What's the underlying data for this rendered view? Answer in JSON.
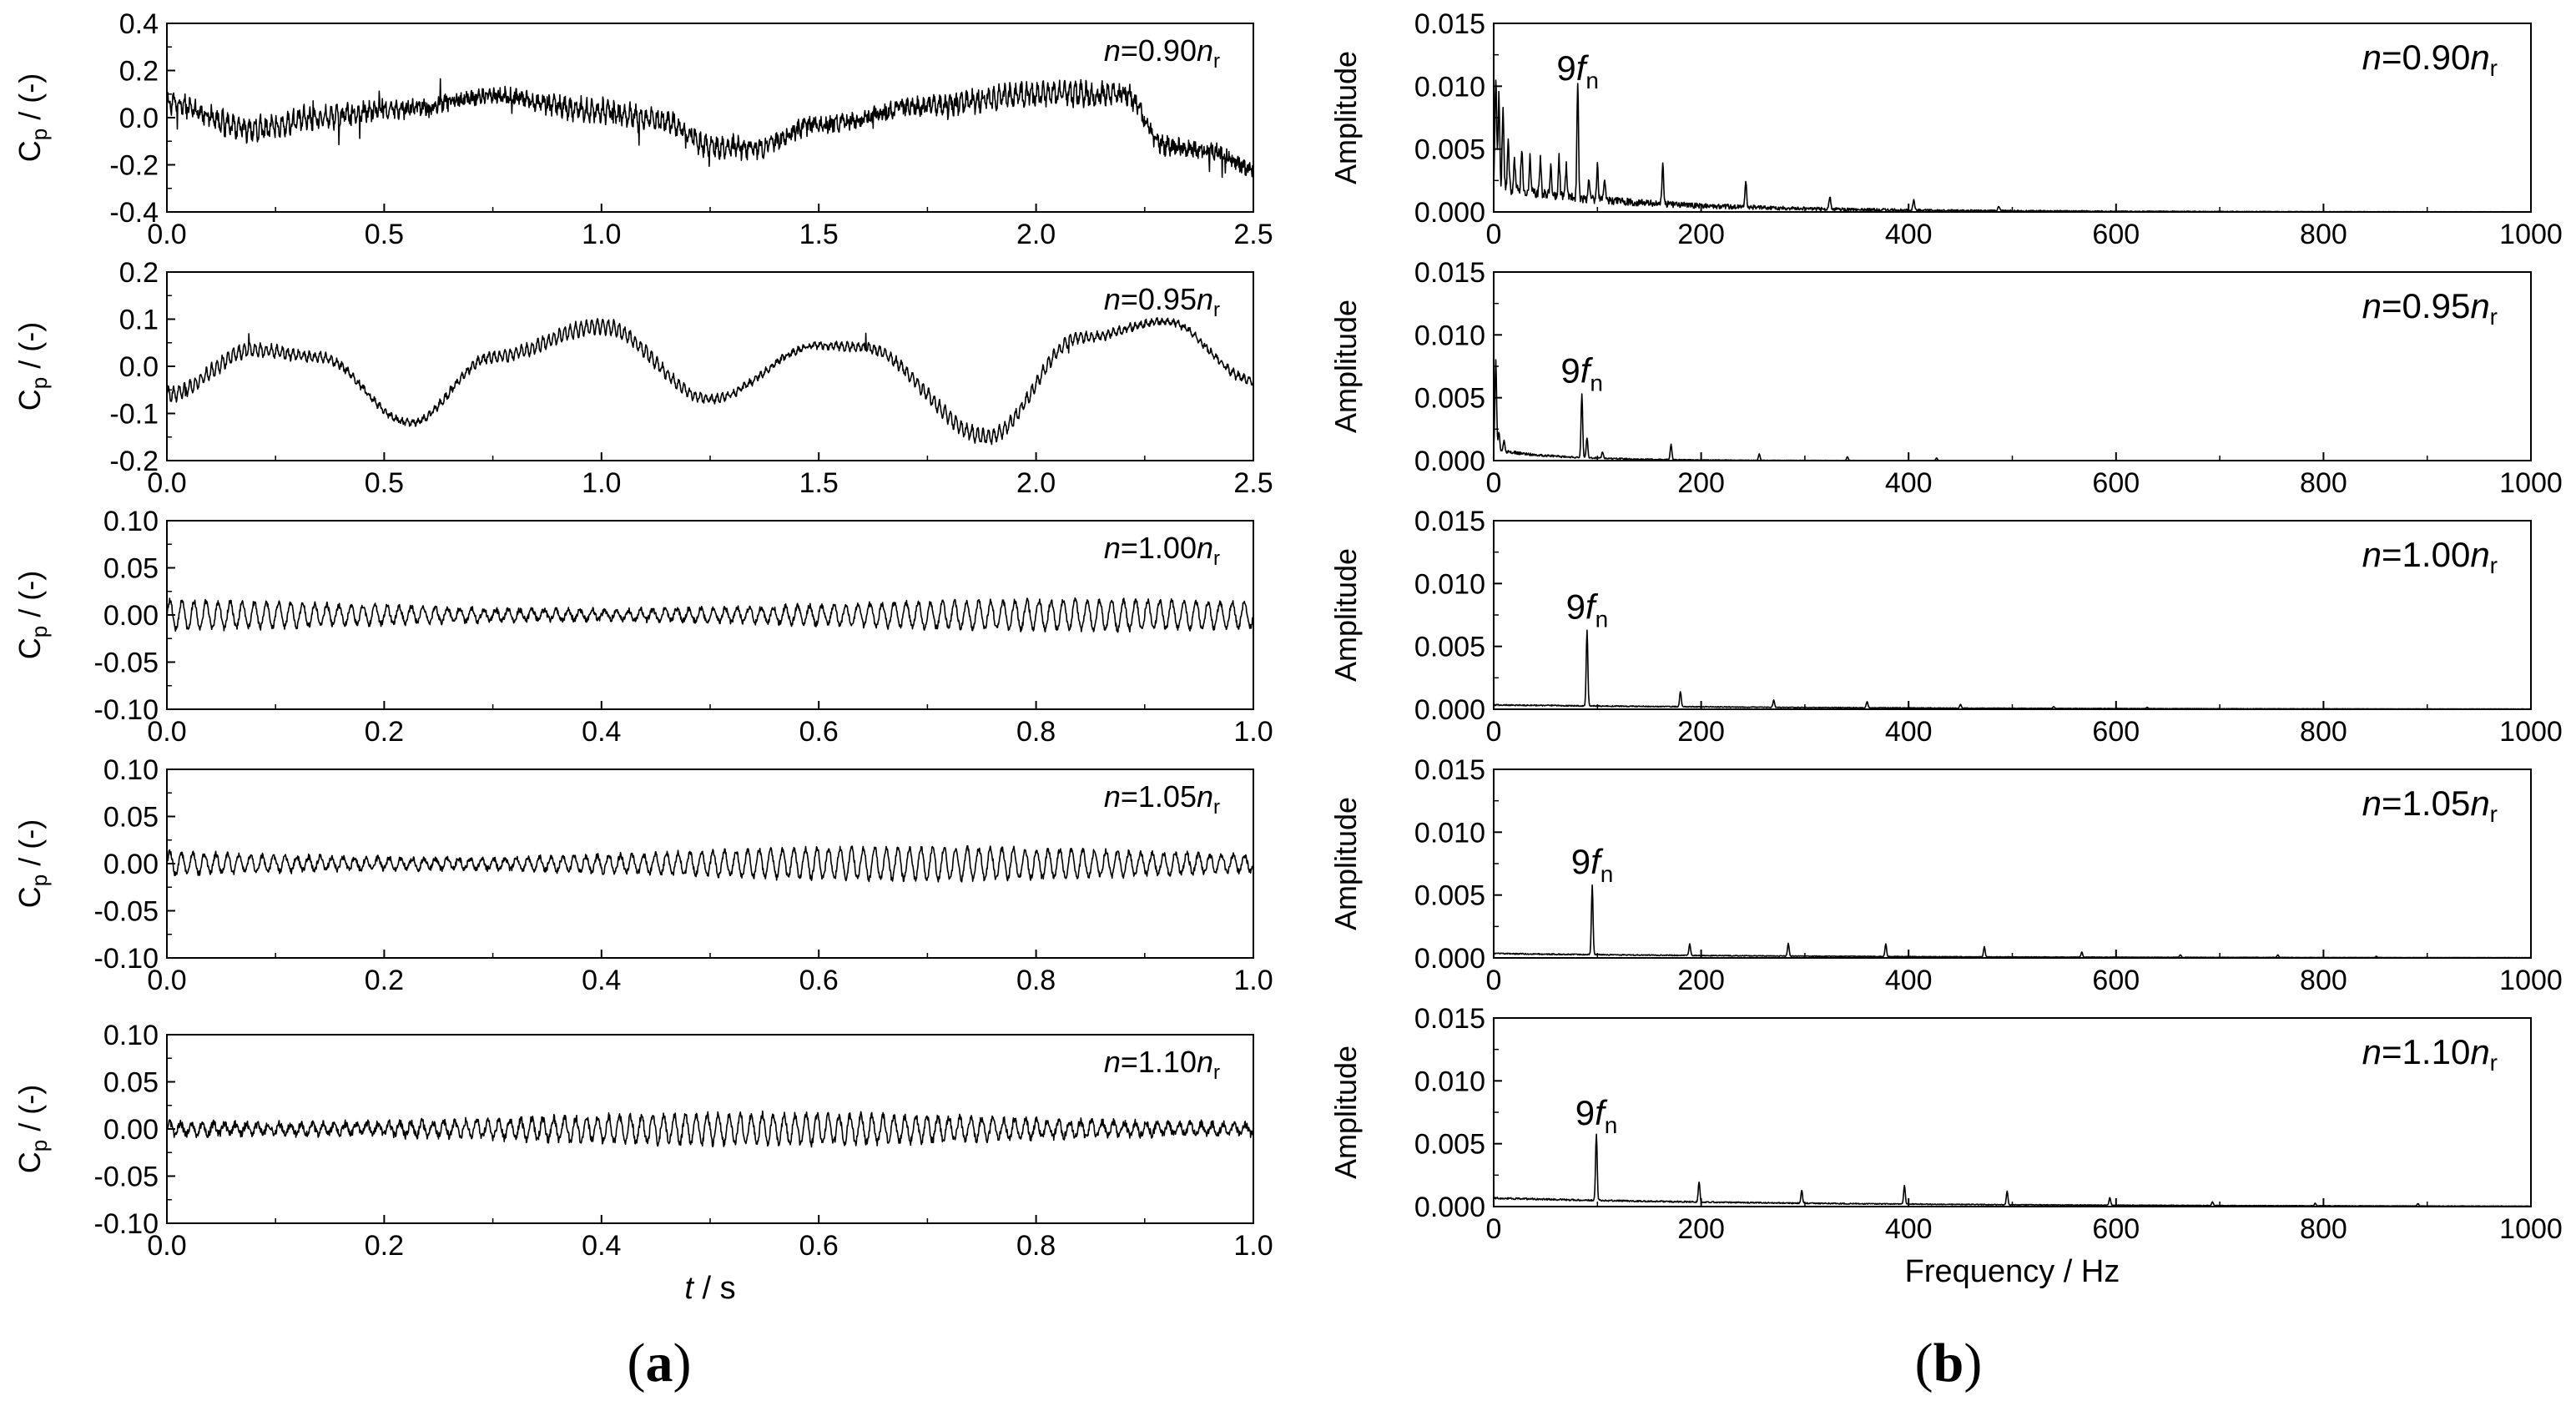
{
  "colors": {
    "line": "#000000",
    "axis": "#000000",
    "background": "#ffffff"
  },
  "panel_labels": {
    "a": {
      "open": "(",
      "letter": "a",
      "close": ")"
    },
    "b": {
      "open": "(",
      "letter": "b",
      "close": ")"
    }
  },
  "chart_data": [
    {
      "type": "line",
      "panel": "a",
      "row": 0,
      "title": "n=0.90nr",
      "annotation": {
        "italic": "n",
        "eq": "=0.90",
        "italic2": "n",
        "sub": "r"
      },
      "ylabel": {
        "main": "C",
        "sub": "p",
        "rest": " / (-)"
      },
      "xlim": [
        0,
        2.5
      ],
      "ylim": [
        -0.4,
        0.4
      ],
      "xticks": [
        "0.0",
        "0.5",
        "1.0",
        "1.5",
        "2.0",
        "2.5"
      ],
      "yticks": [
        "0.4",
        "0.2",
        "0.0",
        "-0.2",
        "-0.4"
      ],
      "xtitle": null,
      "trend": {
        "x": [
          0,
          0.2,
          0.35,
          0.5,
          0.75,
          1.0,
          1.15,
          1.25,
          1.35,
          1.5,
          1.75,
          2.0,
          2.2,
          2.3,
          2.4,
          2.5
        ],
        "y": [
          0.06,
          -0.05,
          0.0,
          0.03,
          0.09,
          0.03,
          -0.02,
          -0.12,
          -0.13,
          -0.03,
          0.05,
          0.1,
          0.1,
          -0.12,
          -0.14,
          -0.22
        ]
      },
      "noise": {
        "fast_amp": 0.03,
        "freq": 80,
        "random_amp": 0.03,
        "spikes": 25,
        "spike_amp": 0.1
      }
    },
    {
      "type": "line",
      "panel": "a",
      "row": 1,
      "title": "n=0.95nr",
      "annotation": {
        "italic": "n",
        "eq": "=0.95",
        "italic2": "n",
        "sub": "r"
      },
      "ylabel": {
        "main": "C",
        "sub": "p",
        "rest": " / (-)"
      },
      "xlim": [
        0,
        2.5
      ],
      "ylim": [
        -0.2,
        0.2
      ],
      "xticks": [
        "0.0",
        "0.5",
        "1.0",
        "1.5",
        "2.0",
        "2.5"
      ],
      "yticks": [
        "0.2",
        "0.1",
        "0.0",
        "-0.1",
        "-0.2"
      ],
      "xtitle": null,
      "trend": {
        "x": [
          0,
          0.2,
          0.35,
          0.56,
          0.75,
          1.0,
          1.25,
          1.5,
          1.6,
          1.89,
          2.1,
          2.3,
          2.5
        ],
        "y": [
          -0.06,
          0.035,
          0.02,
          -0.12,
          0.02,
          0.085,
          -0.07,
          0.045,
          0.04,
          -0.15,
          0.06,
          0.095,
          -0.03
        ]
      },
      "noise": {
        "fast_amp": 0.012,
        "freq": 80,
        "random_amp": 0.005,
        "spikes": 4,
        "spike_amp": 0.04
      }
    },
    {
      "type": "line",
      "panel": "a",
      "row": 2,
      "title": "n=1.00nr",
      "annotation": {
        "italic": "n",
        "eq": "=1.00",
        "italic2": "n",
        "sub": "r"
      },
      "ylabel": {
        "main": "C",
        "sub": "p",
        "rest": " / (-)"
      },
      "xlim": [
        0,
        1.0
      ],
      "ylim": [
        -0.1,
        0.1
      ],
      "xticks": [
        "0.0",
        "0.2",
        "0.4",
        "0.6",
        "0.8",
        "1.0"
      ],
      "yticks": [
        "0.10",
        "0.05",
        "0.00",
        "-0.05",
        "-0.10"
      ],
      "xtitle": null,
      "trend": {
        "x": [
          0,
          1
        ],
        "y": [
          0.0,
          0.0
        ]
      },
      "noise": {
        "fast_amp": 0.013,
        "freq": 90,
        "random_amp": 0.003,
        "spikes": 0,
        "spike_amp": 0
      }
    },
    {
      "type": "line",
      "panel": "a",
      "row": 3,
      "title": "n=1.05nr",
      "annotation": {
        "italic": "n",
        "eq": "=1.05",
        "italic2": "n",
        "sub": "r"
      },
      "ylabel": {
        "main": "C",
        "sub": "p",
        "rest": " / (-)"
      },
      "xlim": [
        0,
        1.0
      ],
      "ylim": [
        -0.1,
        0.1
      ],
      "xticks": [
        "0.0",
        "0.2",
        "0.4",
        "0.6",
        "0.8",
        "1.0"
      ],
      "yticks": [
        "0.10",
        "0.05",
        "0.00",
        "-0.05",
        "-0.10"
      ],
      "xtitle": null,
      "trend": {
        "x": [
          0,
          1
        ],
        "y": [
          0.0,
          0.0
        ]
      },
      "noise": {
        "fast_amp": 0.014,
        "freq": 94,
        "random_amp": 0.003,
        "spikes": 0,
        "spike_amp": 0
      }
    },
    {
      "type": "line",
      "panel": "a",
      "row": 4,
      "title": "n=1.10nr",
      "annotation": {
        "italic": "n",
        "eq": "=1.10",
        "italic2": "n",
        "sub": "r"
      },
      "ylabel": {
        "main": "C",
        "sub": "p",
        "rest": " / (-)"
      },
      "xlim": [
        0,
        1.0
      ],
      "ylim": [
        -0.1,
        0.1
      ],
      "xticks": [
        "0.0",
        "0.2",
        "0.4",
        "0.6",
        "0.8",
        "1.0"
      ],
      "yticks": [
        "0.10",
        "0.05",
        "0.00",
        "-0.05",
        "-0.10"
      ],
      "xtitle": {
        "italic": "t",
        "rest": " / s"
      },
      "trend": {
        "x": [
          0,
          1
        ],
        "y": [
          0.0,
          0.0
        ]
      },
      "noise": {
        "fast_amp": 0.013,
        "freq": 99,
        "random_amp": 0.004,
        "spikes": 0,
        "spike_amp": 0
      }
    },
    {
      "type": "line",
      "panel": "b",
      "row": 0,
      "title": "n=0.90nr",
      "annotation": {
        "italic": "n",
        "eq": "=0.90",
        "italic2": "n",
        "sub": "r"
      },
      "peak_label": {
        "pre": "9",
        "italic": "f",
        "sub": "n",
        "at_freq": 81,
        "at_amp": 0.0093
      },
      "ylabel": {
        "main": "Amplitude"
      },
      "xlim": [
        0,
        1000
      ],
      "ylim": [
        0,
        0.015
      ],
      "xticks": [
        "0",
        "200",
        "400",
        "600",
        "800",
        "1000"
      ],
      "yticks": [
        "0.015",
        "0.010",
        "0.005",
        "0.000"
      ],
      "xtitle": null,
      "peaks": [
        [
          2,
          0.009
        ],
        [
          5,
          0.0075
        ],
        [
          9,
          0.0068
        ],
        [
          14,
          0.004
        ],
        [
          20,
          0.0025
        ],
        [
          27,
          0.0033
        ],
        [
          35,
          0.0028
        ],
        [
          45,
          0.0027
        ],
        [
          55,
          0.0022
        ],
        [
          63,
          0.003
        ],
        [
          70,
          0.0025
        ],
        [
          81,
          0.0093
        ],
        [
          92,
          0.0015
        ],
        [
          100,
          0.0027
        ],
        [
          107,
          0.0019
        ],
        [
          163,
          0.0033
        ],
        [
          243,
          0.0021
        ],
        [
          324,
          0.001
        ],
        [
          405,
          0.0009
        ],
        [
          487,
          0.0004
        ]
      ],
      "floor": {
        "start": 0.0015,
        "decay": 120,
        "noise": 0.001
      }
    },
    {
      "type": "line",
      "panel": "b",
      "row": 1,
      "title": "n=0.95nr",
      "annotation": {
        "italic": "n",
        "eq": "=0.95",
        "italic2": "n",
        "sub": "r"
      },
      "peak_label": {
        "pre": "9",
        "italic": "f",
        "sub": "n",
        "at_freq": 85,
        "at_amp": 0.005
      },
      "ylabel": {
        "main": "Amplitude"
      },
      "xlim": [
        0,
        1000
      ],
      "ylim": [
        0,
        0.015
      ],
      "xticks": [
        "0",
        "200",
        "400",
        "600",
        "800",
        "1000"
      ],
      "yticks": [
        "0.015",
        "0.010",
        "0.005",
        "0.000"
      ],
      "xtitle": null,
      "peaks": [
        [
          2,
          0.0072
        ],
        [
          5,
          0.0015
        ],
        [
          10,
          0.0009
        ],
        [
          85,
          0.005
        ],
        [
          90,
          0.0016
        ],
        [
          105,
          0.0005
        ],
        [
          171,
          0.0012
        ],
        [
          256,
          0.0005
        ],
        [
          341,
          0.0003
        ],
        [
          427,
          0.0002
        ]
      ],
      "floor": {
        "start": 0.0007,
        "decay": 60,
        "noise": 0.0003
      }
    },
    {
      "type": "line",
      "panel": "b",
      "row": 2,
      "title": "n=1.00nr",
      "annotation": {
        "italic": "n",
        "eq": "=1.00",
        "italic2": "n",
        "sub": "r"
      },
      "peak_label": {
        "pre": "9",
        "italic": "f",
        "sub": "n",
        "at_freq": 90,
        "at_amp": 0.006
      },
      "ylabel": {
        "main": "Amplitude"
      },
      "xlim": [
        0,
        1000
      ],
      "ylim": [
        0,
        0.015
      ],
      "xticks": [
        "0",
        "200",
        "400",
        "600",
        "800",
        "1000"
      ],
      "yticks": [
        "0.015",
        "0.010",
        "0.005",
        "0.000"
      ],
      "xtitle": null,
      "peaks": [
        [
          90,
          0.006
        ],
        [
          180,
          0.0012
        ],
        [
          270,
          0.0006
        ],
        [
          360,
          0.0005
        ],
        [
          450,
          0.0003
        ],
        [
          540,
          0.00015
        ],
        [
          630,
          0.0001
        ]
      ],
      "floor": {
        "start": 0.0003,
        "decay": 300,
        "noise": 0.0001
      }
    },
    {
      "type": "line",
      "panel": "b",
      "row": 3,
      "title": "n=1.05nr",
      "annotation": {
        "italic": "n",
        "eq": "=1.05",
        "italic2": "n",
        "sub": "r"
      },
      "peak_label": {
        "pre": "9",
        "italic": "f",
        "sub": "n",
        "at_freq": 95,
        "at_amp": 0.0055
      },
      "ylabel": {
        "main": "Amplitude"
      },
      "xlim": [
        0,
        1000
      ],
      "ylim": [
        0,
        0.015
      ],
      "xticks": [
        "0",
        "200",
        "400",
        "600",
        "800",
        "1000"
      ],
      "yticks": [
        "0.015",
        "0.010",
        "0.005",
        "0.000"
      ],
      "xtitle": null,
      "peaks": [
        [
          95,
          0.0055
        ],
        [
          189,
          0.0009
        ],
        [
          284,
          0.001
        ],
        [
          378,
          0.001
        ],
        [
          473,
          0.0008
        ],
        [
          567,
          0.0004
        ],
        [
          662,
          0.0002
        ],
        [
          756,
          0.0002
        ],
        [
          851,
          0.0001
        ]
      ],
      "floor": {
        "start": 0.0003,
        "decay": 300,
        "noise": 0.0001
      }
    },
    {
      "type": "line",
      "panel": "b",
      "row": 4,
      "title": "n=1.10nr",
      "annotation": {
        "italic": "n",
        "eq": "=1.10",
        "italic2": "n",
        "sub": "r"
      },
      "peak_label": {
        "pre": "9",
        "italic": "f",
        "sub": "n",
        "at_freq": 99,
        "at_amp": 0.0053
      },
      "ylabel": {
        "main": "Amplitude"
      },
      "xlim": [
        0,
        1000
      ],
      "ylim": [
        0,
        0.015
      ],
      "xticks": [
        "0",
        "200",
        "400",
        "600",
        "800",
        "1000"
      ],
      "yticks": [
        "0.015",
        "0.010",
        "0.005",
        "0.000"
      ],
      "xtitle": {
        "text": "Frequency / Hz"
      },
      "peaks": [
        [
          99,
          0.0053
        ],
        [
          198,
          0.0016
        ],
        [
          297,
          0.001
        ],
        [
          396,
          0.0015
        ],
        [
          495,
          0.0011
        ],
        [
          594,
          0.0006
        ],
        [
          693,
          0.0003
        ],
        [
          792,
          0.0002
        ],
        [
          891,
          0.0002
        ]
      ],
      "floor": {
        "start": 0.0006,
        "decay": 300,
        "noise": 0.00015
      }
    }
  ]
}
